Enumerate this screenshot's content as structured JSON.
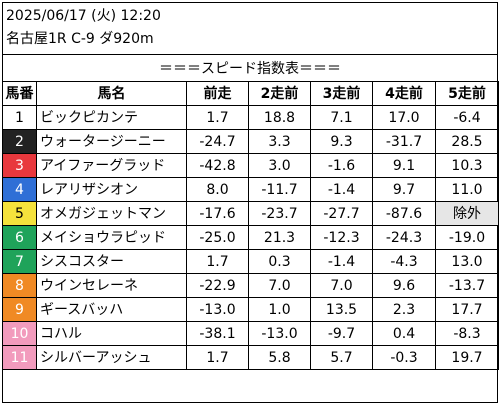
{
  "header": {
    "date_time": "2025/06/17 (火) 12:20",
    "race_info": "名古屋1R C-9 ダ920m"
  },
  "title": "＝＝＝スピード指数表＝＝＝",
  "columns": [
    "馬番",
    "馬名",
    "前走",
    "2走前",
    "3走前",
    "4走前",
    "5走前"
  ],
  "colors": {
    "1": "#ffffff",
    "2": "#000000",
    "3": "#e8383d",
    "4": "#1f6fd1",
    "5": "#f5e23c",
    "6": "#18a05a",
    "7": "#f08a24",
    "8": "#f29bbd",
    "excluded_bg": "#e6e6e6"
  },
  "rows": [
    {
      "num": "1",
      "name": "ビックピカンテ",
      "vals": [
        "1.7",
        "18.8",
        "7.1",
        "17.0",
        "-6.4"
      ],
      "bg": "#ffffff",
      "fg": "#000000"
    },
    {
      "num": "2",
      "name": "ウォータージーニー",
      "vals": [
        "-24.7",
        "3.3",
        "9.3",
        "-31.7",
        "28.5"
      ],
      "bg": "#222222",
      "fg": "#ffffff"
    },
    {
      "num": "3",
      "name": "アイファーグラッド",
      "vals": [
        "-42.8",
        "3.0",
        "-1.6",
        "9.1",
        "10.3"
      ],
      "bg": "#e8383d",
      "fg": "#ffffff"
    },
    {
      "num": "4",
      "name": "レアリザシオン",
      "vals": [
        "8.0",
        "-11.7",
        "-1.4",
        "9.7",
        "11.0"
      ],
      "bg": "#2f6fd6",
      "fg": "#ffffff"
    },
    {
      "num": "5",
      "name": "オメガジェットマン",
      "vals": [
        "-17.6",
        "-23.7",
        "-27.7",
        "-87.6",
        "除外"
      ],
      "bg": "#f5e23c",
      "fg": "#000000"
    },
    {
      "num": "6",
      "name": "メイショウラピッド",
      "vals": [
        "-25.0",
        "21.3",
        "-12.3",
        "-24.3",
        "-19.0"
      ],
      "bg": "#1fa35a",
      "fg": "#ffffff"
    },
    {
      "num": "7",
      "name": "シスコスター",
      "vals": [
        "1.7",
        "0.3",
        "-1.4",
        "-4.3",
        "13.0"
      ],
      "bg": "#1fa35a",
      "fg": "#ffffff"
    },
    {
      "num": "8",
      "name": "ウインセレーネ",
      "vals": [
        "-22.9",
        "7.0",
        "7.0",
        "9.6",
        "-13.7"
      ],
      "bg": "#f08a24",
      "fg": "#ffffff"
    },
    {
      "num": "9",
      "name": "ギースバッハ",
      "vals": [
        "-13.0",
        "1.0",
        "13.5",
        "2.3",
        "17.7"
      ],
      "bg": "#f08a24",
      "fg": "#ffffff"
    },
    {
      "num": "10",
      "name": "コハル",
      "vals": [
        "-38.1",
        "-13.0",
        "-9.7",
        "0.4",
        "-8.3"
      ],
      "bg": "#f29bbd",
      "fg": "#ffffff"
    },
    {
      "num": "11",
      "name": "シルバーアッシュ",
      "vals": [
        "1.7",
        "5.8",
        "5.7",
        "-0.3",
        "19.7"
      ],
      "bg": "#f29bbd",
      "fg": "#ffffff"
    }
  ]
}
